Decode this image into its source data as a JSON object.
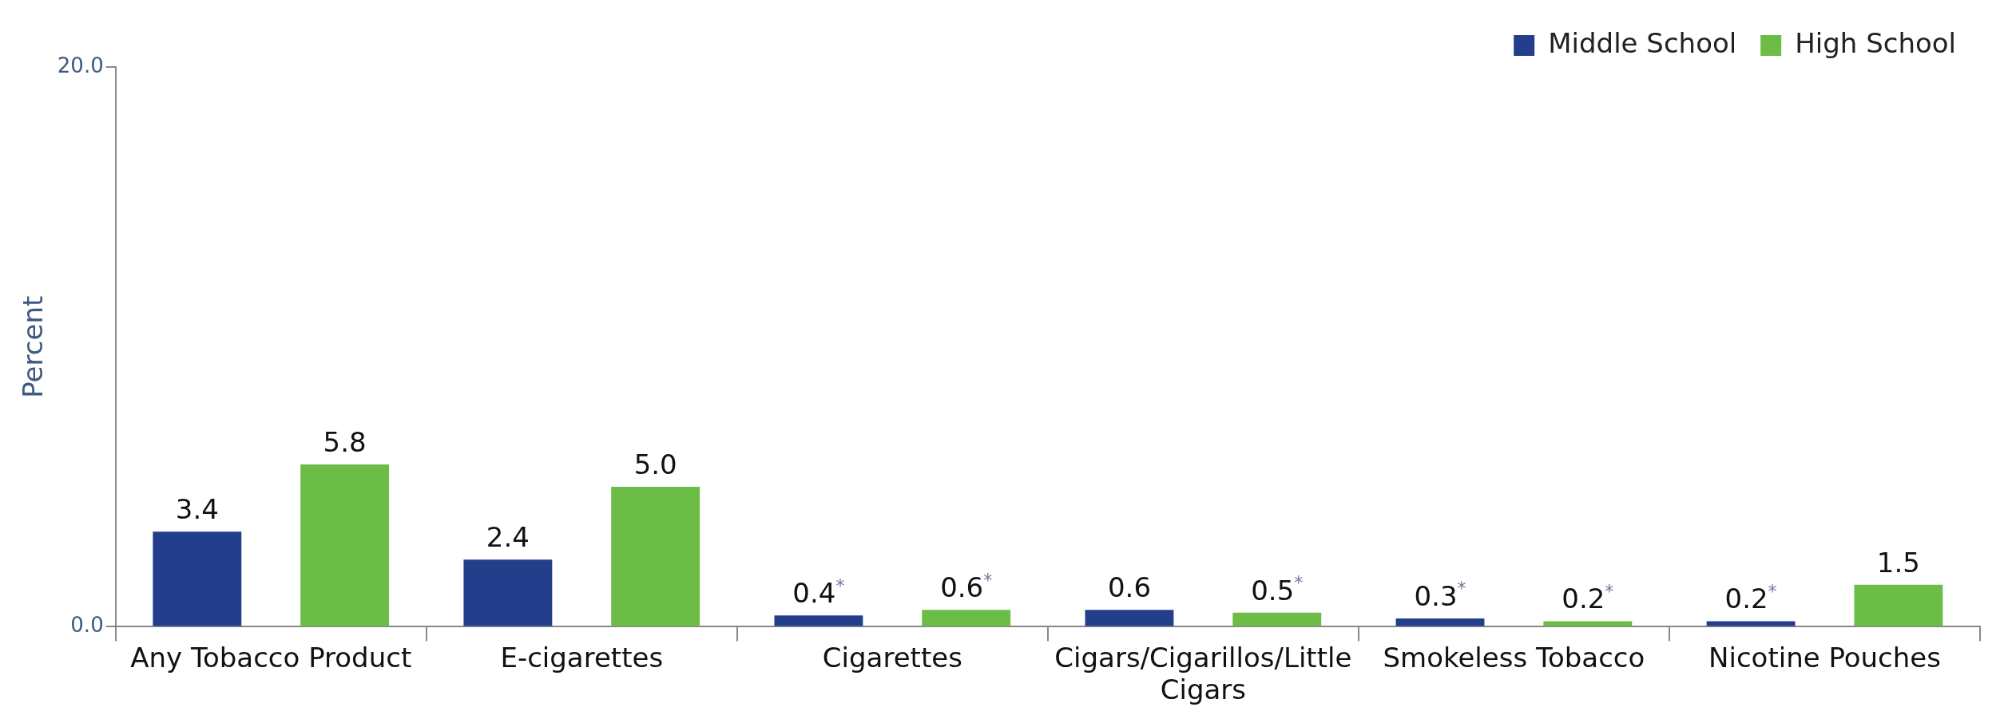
{
  "chart_data": {
    "type": "bar",
    "ylabel": "Percent",
    "categories": [
      "Any Tobacco Product",
      "E-cigarettes",
      "Cigarettes",
      "Cigars/Cigarillos/Little Cigars",
      "Smokeless Tobacco",
      "Nicotine Pouches"
    ],
    "series": [
      {
        "name": "Middle School",
        "color": "#233e8b",
        "values": [
          3.4,
          2.4,
          0.4,
          0.6,
          0.3,
          0.2
        ],
        "value_labels": [
          "3.4",
          "2.4",
          "0.4$^{*}$",
          "0.6",
          "0.3$^{*}$",
          "0.2$^{*}$"
        ]
      },
      {
        "name": "High School",
        "color": "#6bbd45",
        "values": [
          5.8,
          5.0,
          0.6,
          0.5,
          0.2,
          1.5
        ],
        "value_labels": [
          "5.8",
          "5.0",
          "0.6$^{*}$",
          "0.5$^{*}$",
          "0.2$^{*}$",
          "1.5"
        ]
      }
    ],
    "ylim": [
      0,
      20
    ],
    "yticks": [
      {
        "value": 0,
        "label": "0.0"
      },
      {
        "value": 20,
        "label": "20.0"
      }
    ],
    "grid": false,
    "legend": "top right"
  }
}
